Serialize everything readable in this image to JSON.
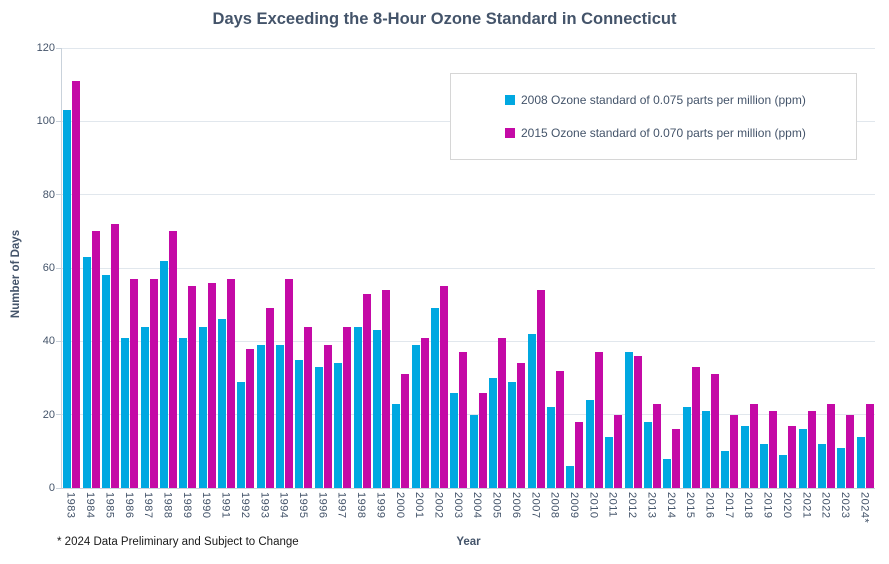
{
  "title": "Days Exceeding the 8-Hour Ozone Standard in Connecticut",
  "footnote": "* 2024 Data Preliminary and Subject to Change",
  "colors": {
    "series_blue": "#00A8E1",
    "series_magenta": "#C40AA6",
    "heading_text": "#44546A",
    "tick_text": "#44546A",
    "legend_text": "#44546A",
    "gridline": "#E1E7ED",
    "axis_line": "#C9D2DB"
  },
  "chart_data": {
    "type": "bar",
    "title": "Days Exceeding the 8-Hour Ozone Standard in Connecticut",
    "xlabel": "Year",
    "ylabel": "Number of Days",
    "ylim": [
      0,
      120
    ],
    "yticks": [
      0,
      20,
      40,
      60,
      80,
      100,
      120
    ],
    "grid": true,
    "legend_position": "top-right-inside",
    "categories": [
      "1983",
      "1984",
      "1985",
      "1986",
      "1987",
      "1988",
      "1989",
      "1990",
      "1991",
      "1992",
      "1993",
      "1994",
      "1995",
      "1996",
      "1997",
      "1998",
      "1999",
      "2000",
      "2001",
      "2002",
      "2003",
      "2004",
      "2005",
      "2006",
      "2007",
      "2008",
      "2009",
      "2010",
      "2011",
      "2012",
      "2013",
      "2014",
      "2015",
      "2016",
      "2017",
      "2018",
      "2019",
      "2020",
      "2021",
      "2022",
      "2023",
      "2024*"
    ],
    "series": [
      {
        "name": "2008 Ozone standard of 0.075 parts per million (ppm)",
        "color": "#00A8E1",
        "values": [
          103,
          63,
          58,
          41,
          44,
          62,
          41,
          44,
          46,
          29,
          39,
          39,
          35,
          33,
          34,
          44,
          43,
          23,
          39,
          49,
          26,
          20,
          30,
          29,
          42,
          22,
          6,
          24,
          14,
          37,
          18,
          8,
          22,
          21,
          10,
          17,
          12,
          9,
          16,
          12,
          11,
          14
        ]
      },
      {
        "name": "2015 Ozone standard of 0.070 parts per million (ppm)",
        "color": "#C40AA6",
        "values": [
          111,
          70,
          72,
          57,
          57,
          70,
          55,
          56,
          57,
          38,
          49,
          57,
          44,
          39,
          44,
          53,
          54,
          31,
          41,
          55,
          37,
          26,
          41,
          34,
          54,
          32,
          18,
          37,
          20,
          36,
          23,
          16,
          33,
          31,
          20,
          23,
          21,
          17,
          21,
          23,
          20,
          23
        ]
      }
    ]
  }
}
